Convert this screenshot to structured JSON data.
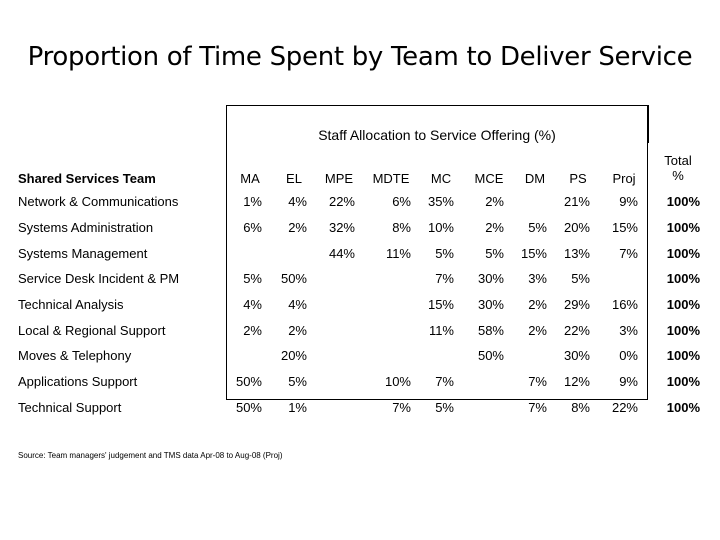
{
  "title": "Proportion of Time Spent by Team to Deliver Service",
  "table": {
    "group_header": "Staff Allocation to Service Offering (%)",
    "team_header": "Shared Services Team",
    "columns": [
      "MA",
      "EL",
      "MPE",
      "MDTE",
      "MC",
      "MCE",
      "DM",
      "PS",
      "Proj"
    ],
    "total_header_line1": "Total",
    "total_header_line2": "%",
    "rows": [
      {
        "team": "Network & Communications",
        "cells": [
          "1%",
          "4%",
          "22%",
          "6%",
          "35%",
          "2%",
          "",
          "21%",
          "9%"
        ],
        "total": "100%"
      },
      {
        "team": "Systems Administration",
        "cells": [
          "6%",
          "2%",
          "32%",
          "8%",
          "10%",
          "2%",
          "5%",
          "20%",
          "15%"
        ],
        "total": "100%"
      },
      {
        "team": "Systems Management",
        "cells": [
          "",
          "",
          "44%",
          "11%",
          "5%",
          "5%",
          "15%",
          "13%",
          "7%"
        ],
        "total": "100%"
      },
      {
        "team": "Service Desk Incident & PM",
        "cells": [
          "5%",
          "50%",
          "",
          "",
          "7%",
          "30%",
          "3%",
          "5%",
          ""
        ],
        "total": "100%"
      },
      {
        "team": "Technical Analysis",
        "cells": [
          "4%",
          "4%",
          "",
          "",
          "15%",
          "30%",
          "2%",
          "29%",
          "16%"
        ],
        "total": "100%"
      },
      {
        "team": "Local & Regional Support",
        "cells": [
          "2%",
          "2%",
          "",
          "",
          "11%",
          "58%",
          "2%",
          "22%",
          "3%"
        ],
        "total": "100%"
      },
      {
        "team": "Moves & Telephony",
        "cells": [
          "",
          "20%",
          "",
          "",
          "",
          "50%",
          "",
          "30%",
          "0%"
        ],
        "total": "100%"
      },
      {
        "team": "Applications Support",
        "cells": [
          "50%",
          "5%",
          "",
          "10%",
          "7%",
          "",
          "7%",
          "12%",
          "9%"
        ],
        "total": "100%"
      },
      {
        "team": "Technical Support",
        "cells": [
          "50%",
          "1%",
          "",
          "7%",
          "5%",
          "",
          "7%",
          "8%",
          "22%"
        ],
        "total": "100%"
      }
    ]
  },
  "source_note": "Source: Team managers' judgement and TMS data Apr-08 to Aug-08 (Proj)"
}
